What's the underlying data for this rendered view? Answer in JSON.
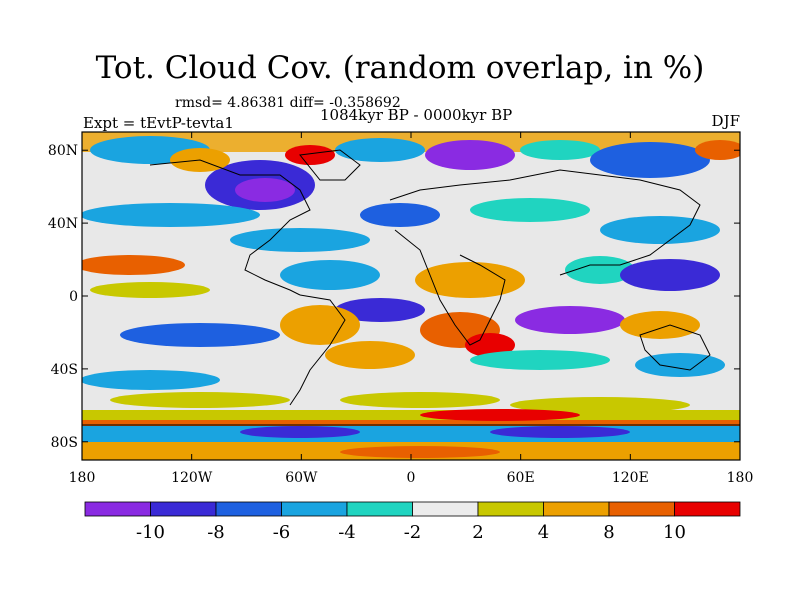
{
  "title": "Tot. Cloud Cov. (random overlap, in %)",
  "stats": "rmsd= 4.86381 diff= -0.358692",
  "period": "1084kyr BP - 0000kyr BP",
  "experiment": "Expt = tEvtP-tevta1",
  "season": "DJF",
  "lat_labels": [
    "80N",
    "40N",
    "0",
    "40S",
    "80S"
  ],
  "lat_values": [
    80,
    40,
    0,
    -40,
    -80
  ],
  "lon_labels": [
    "180",
    "120W",
    "60W",
    "0",
    "60E",
    "120E",
    "180"
  ],
  "lon_values": [
    -180,
    -120,
    -60,
    0,
    60,
    120,
    180
  ],
  "colorbar": {
    "colors": [
      "#8a2be2",
      "#3a2ad6",
      "#1e60e0",
      "#1aa4e0",
      "#20d4c0",
      "#ececec",
      "#c8c800",
      "#eca000",
      "#e86000",
      "#e80000"
    ],
    "labels": [
      "-10",
      "-8",
      "-6",
      "-4",
      "-2",
      "2",
      "4",
      "8",
      "10"
    ]
  }
}
